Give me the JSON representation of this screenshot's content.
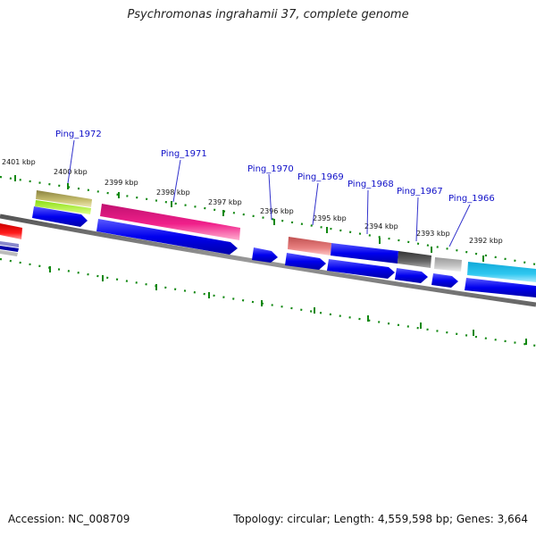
{
  "title": "Psychromonas ingrahamii 37, complete genome",
  "accession_text": "Accession: NC_008709",
  "topology_text": "Topology: circular; Length: 4,559,598 bp; Genes: 3,664",
  "scale_labels": [
    "2401 kbp",
    "2400 kbp",
    "2399 kbp",
    "2398 kbp",
    "2397 kbp",
    "2396 kbp",
    "2395 kbp",
    "2394 kbp",
    "2393 kbp",
    "2392 kbp"
  ],
  "gene_labels": [
    "Ping_1972",
    "Ping_1971",
    "Ping_1970",
    "Ping_1969",
    "Ping_1968",
    "Ping_1967",
    "Ping_1966"
  ],
  "colors": {
    "backbone": "#777777",
    "cds_blue": "#0000ee",
    "tick_green": "#118811",
    "label_blue": "#1010c8",
    "leader_blue": "#3333cc",
    "magenta": "#e8157a",
    "cyan": "#1ab8e8",
    "salmon": "#e07070",
    "olive": "#b8b060",
    "lime": "#aaff33",
    "dark_grey": "#555555",
    "light_grey": "#bbbbbb",
    "red": "#ee0000"
  }
}
